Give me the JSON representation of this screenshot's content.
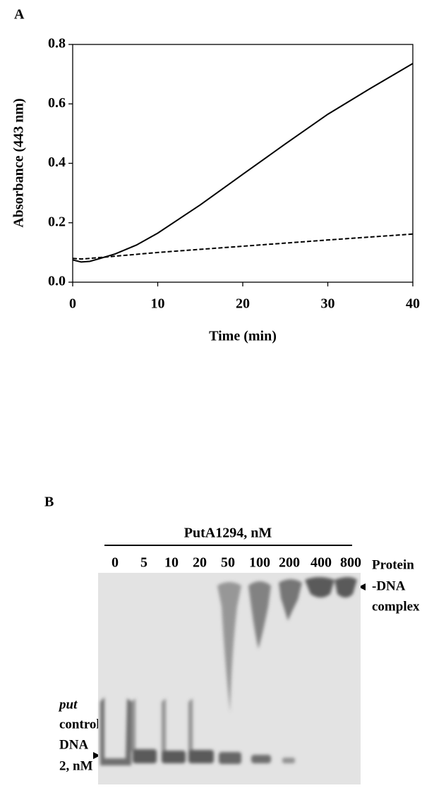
{
  "chart_data": {
    "type": "line",
    "panel_label": "A",
    "x_label": "Time (min)",
    "y_label": "Absorbance (443 nm)",
    "xlim": [
      0,
      40
    ],
    "xticks": [
      0,
      10,
      20,
      30,
      40
    ],
    "ylim": [
      0,
      0.8
    ],
    "yticks": [
      {
        "value": 0,
        "label": "0.0"
      },
      0.2,
      0.4,
      0.6,
      0.8
    ],
    "series": [
      {
        "color": "#000000",
        "line_style": "solid",
        "x": [
          0,
          1,
          2,
          3,
          5,
          7.5,
          10,
          15,
          20,
          25,
          30,
          35,
          40
        ],
        "values": [
          0.075,
          0.068,
          0.07,
          0.078,
          0.095,
          0.125,
          0.165,
          0.26,
          0.363,
          0.465,
          0.565,
          0.652,
          0.736
        ]
      },
      {
        "color": "#000000",
        "line_style": "dashed",
        "x": [
          0,
          1,
          2,
          10,
          20,
          30,
          40
        ],
        "values": [
          0.08,
          0.078,
          0.08,
          0.1,
          0.121,
          0.142,
          0.162
        ]
      }
    ]
  },
  "gel": {
    "panel_label": "B",
    "title": "PutA1294, nM",
    "lanes": [
      "0",
      "5",
      "10",
      "20",
      "50",
      "100",
      "200",
      "400",
      "800"
    ],
    "right_label": [
      "Protein",
      "-DNA",
      "complex"
    ],
    "left_label": [
      "put",
      "control",
      "DNA",
      "2, nM"
    ]
  }
}
